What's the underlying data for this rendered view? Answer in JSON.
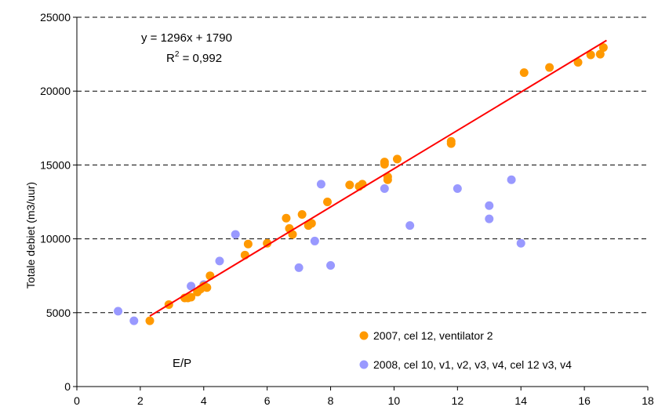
{
  "chart_data": {
    "type": "scatter",
    "xlim": [
      0,
      18
    ],
    "ylim": [
      0,
      25000
    ],
    "xticks": [
      0,
      2,
      4,
      6,
      8,
      10,
      12,
      14,
      16,
      18
    ],
    "yticks": [
      0,
      5000,
      10000,
      15000,
      20000,
      25000
    ],
    "ylabel": "Totale debiet (m3/uur)",
    "xlabel": "",
    "grid": "horizontal-dashed",
    "legend_placement": "bottom-right",
    "annotations": {
      "equation": "y = 1296x + 1790",
      "r2_prefix": "R",
      "r2_sup": "2",
      "r2_value": " = 0,992",
      "ep_label": "E/P"
    },
    "trendline": {
      "slope": 1296,
      "intercept": 1790,
      "x_range": [
        2.3,
        16.7
      ],
      "color": "#ff0000"
    },
    "series": [
      {
        "name": "2007, cel 12, ventilator 2",
        "color": "#ff9900",
        "points": [
          [
            2.3,
            4450
          ],
          [
            2.9,
            5550
          ],
          [
            3.4,
            6000
          ],
          [
            3.5,
            6000
          ],
          [
            3.6,
            6050
          ],
          [
            3.8,
            6400
          ],
          [
            3.9,
            6600
          ],
          [
            4.0,
            6800
          ],
          [
            4.1,
            6700
          ],
          [
            4.2,
            7500
          ],
          [
            5.3,
            8900
          ],
          [
            5.4,
            9650
          ],
          [
            6.0,
            9700
          ],
          [
            6.6,
            11400
          ],
          [
            6.7,
            10700
          ],
          [
            6.8,
            10300
          ],
          [
            7.1,
            11650
          ],
          [
            7.3,
            10900
          ],
          [
            7.4,
            11050
          ],
          [
            7.9,
            12500
          ],
          [
            8.6,
            13650
          ],
          [
            8.9,
            13550
          ],
          [
            9.0,
            13700
          ],
          [
            9.7,
            15200
          ],
          [
            9.7,
            15050
          ],
          [
            9.8,
            14000
          ],
          [
            9.8,
            14200
          ],
          [
            10.1,
            15400
          ],
          [
            11.8,
            16600
          ],
          [
            11.8,
            16450
          ],
          [
            14.1,
            21250
          ],
          [
            14.9,
            21600
          ],
          [
            15.8,
            21950
          ],
          [
            16.2,
            22450
          ],
          [
            16.5,
            22500
          ],
          [
            16.6,
            22950
          ]
        ]
      },
      {
        "name": "2008, cel 10, v1, v2, v3, v4, cel 12 v3, v4",
        "color": "#9999ff",
        "points": [
          [
            1.3,
            5100
          ],
          [
            1.8,
            4450
          ],
          [
            3.6,
            6800
          ],
          [
            4.0,
            6900
          ],
          [
            4.5,
            8500
          ],
          [
            5.0,
            10300
          ],
          [
            7.0,
            8050
          ],
          [
            7.5,
            9850
          ],
          [
            7.7,
            13700
          ],
          [
            8.0,
            8200
          ],
          [
            9.7,
            13400
          ],
          [
            10.5,
            10900
          ],
          [
            12.0,
            13400
          ],
          [
            13.0,
            12250
          ],
          [
            13.0,
            11350
          ],
          [
            13.7,
            14000
          ],
          [
            14.0,
            9700
          ]
        ]
      }
    ]
  }
}
